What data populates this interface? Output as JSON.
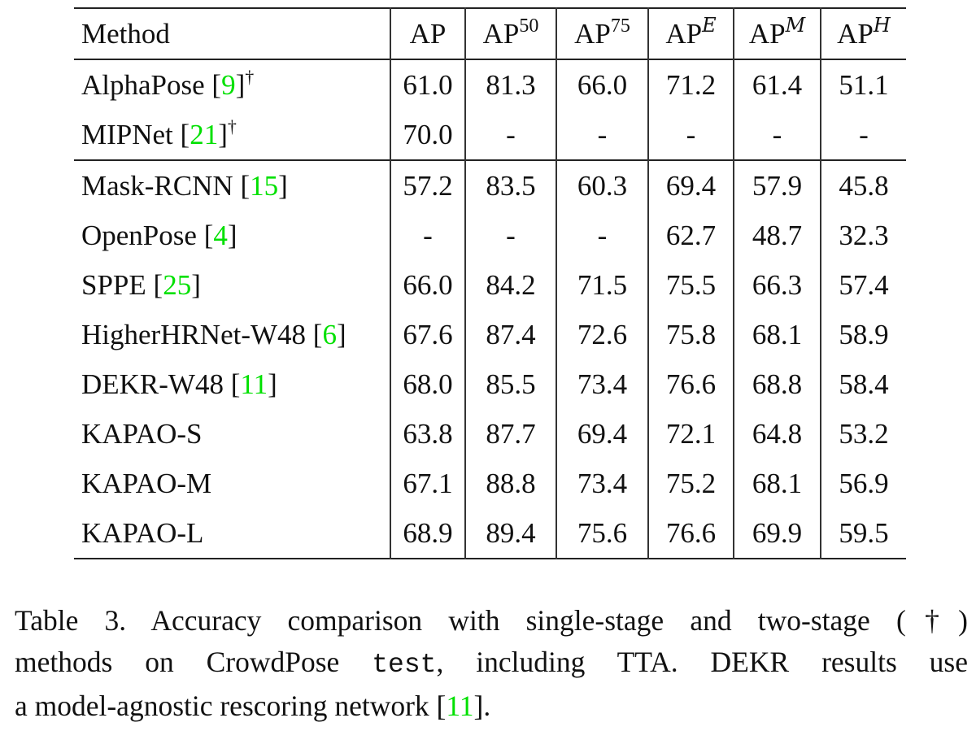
{
  "table": {
    "columns": [
      {
        "key": "method",
        "label": "Method"
      },
      {
        "key": "ap",
        "base": "AP",
        "sup": ""
      },
      {
        "key": "ap50",
        "base": "AP",
        "sup": "50"
      },
      {
        "key": "ap75",
        "base": "AP",
        "sup": "75"
      },
      {
        "key": "apE",
        "base": "AP",
        "sup": "E"
      },
      {
        "key": "apM",
        "base": "AP",
        "sup": "M"
      },
      {
        "key": "apH",
        "base": "AP",
        "sup": "H"
      }
    ],
    "rows": [
      {
        "name": "AlphaPose",
        "cite": "9",
        "dagger": "†",
        "values": [
          "61.0",
          "81.3",
          "66.0",
          "71.2",
          "61.4",
          "51.1"
        ],
        "bold": [
          false,
          false,
          true,
          true,
          true,
          true
        ]
      },
      {
        "name": "MIPNet",
        "cite": "21",
        "dagger": "†",
        "values": [
          "70.0",
          "-",
          "-",
          "-",
          "-",
          "-"
        ],
        "bold": [
          true,
          false,
          false,
          false,
          false,
          false
        ]
      },
      {
        "name": "Mask-RCNN",
        "cite": "15",
        "dagger": "",
        "values": [
          "57.2",
          "83.5",
          "60.3",
          "69.4",
          "57.9",
          "45.8"
        ],
        "bold": [
          false,
          false,
          false,
          false,
          false,
          false
        ]
      },
      {
        "name": "OpenPose",
        "cite": "4",
        "dagger": "",
        "values": [
          "-",
          "-",
          "-",
          "62.7",
          "48.7",
          "32.3"
        ],
        "bold": [
          false,
          false,
          false,
          false,
          false,
          false
        ]
      },
      {
        "name": "SPPE",
        "cite": "25",
        "dagger": "",
        "values": [
          "66.0",
          "84.2",
          "71.5",
          "75.5",
          "66.3",
          "57.4"
        ],
        "bold": [
          false,
          false,
          false,
          false,
          false,
          false
        ]
      },
      {
        "name": "HigherHRNet-W48",
        "cite": "6",
        "dagger": "",
        "values": [
          "67.6",
          "87.4",
          "72.6",
          "75.8",
          "68.1",
          "58.9"
        ],
        "bold": [
          false,
          false,
          false,
          false,
          false,
          false
        ]
      },
      {
        "name": "DEKR-W48",
        "cite": "11",
        "dagger": "",
        "values": [
          "68.0",
          "85.5",
          "73.4",
          "76.6",
          "68.8",
          "58.4"
        ],
        "bold": [
          false,
          false,
          false,
          true,
          false,
          false
        ]
      },
      {
        "name": "KAPAO-S",
        "cite": "",
        "dagger": "",
        "values": [
          "63.8",
          "87.7",
          "69.4",
          "72.1",
          "64.8",
          "53.2"
        ],
        "bold": [
          false,
          false,
          false,
          false,
          false,
          false
        ]
      },
      {
        "name": "KAPAO-M",
        "cite": "",
        "dagger": "",
        "values": [
          "67.1",
          "88.8",
          "73.4",
          "75.2",
          "68.1",
          "56.9"
        ],
        "bold": [
          false,
          false,
          false,
          false,
          false,
          false
        ]
      },
      {
        "name": "KAPAO-L",
        "cite": "",
        "dagger": "",
        "values": [
          "68.9",
          "89.4",
          "75.6",
          "76.6",
          "69.9",
          "59.5"
        ],
        "bold": [
          true,
          true,
          true,
          true,
          true,
          true
        ]
      }
    ]
  },
  "caption": {
    "line1": "Table 3. Accuracy comparison with single-stage and two-stage (†)",
    "line2_pre": "methods on CrowdPose ",
    "line2_mono": "test",
    "line2_post": ", including TTA. DEKR results use",
    "line3_pre": "a model-agnostic rescoring network [",
    "line3_cite": "11",
    "line3_post": "]."
  },
  "colors": {
    "citation": "#00e000",
    "text": "#111111",
    "rules": "#222222"
  }
}
